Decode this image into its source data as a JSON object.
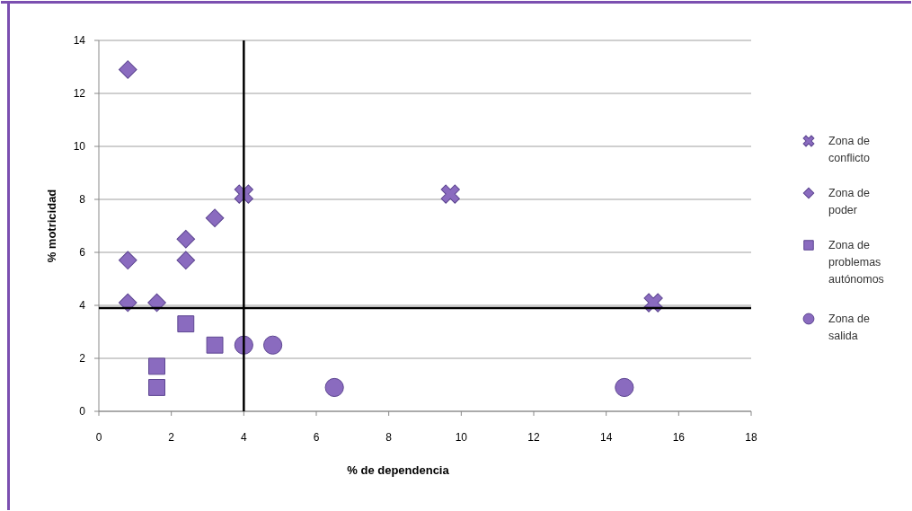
{
  "chart_data": {
    "type": "scatter",
    "xlabel": "% de dependencia",
    "ylabel": "% motricidad",
    "xlim": [
      0,
      18
    ],
    "xticks": [
      0,
      2,
      4,
      6,
      8,
      10,
      12,
      14,
      16,
      18
    ],
    "ylim": [
      0,
      14
    ],
    "yticks": [
      0,
      2,
      4,
      6,
      8,
      10,
      12,
      14
    ],
    "grid": "y",
    "legend": "right",
    "series": [
      {
        "name": "Zona de conflicto",
        "color": "#8a6bbf",
        "marker": "cross",
        "x": [
          4.0,
          9.7,
          15.3
        ],
        "values": [
          8.2,
          8.2,
          4.1
        ]
      },
      {
        "name": "Zona de poder",
        "color": "#8a6bbf",
        "marker": "diamond",
        "x": [
          0.8,
          0.8,
          0.8,
          1.6,
          2.4,
          2.4,
          3.2
        ],
        "values": [
          12.9,
          5.7,
          4.1,
          4.1,
          6.5,
          5.7,
          7.3
        ]
      },
      {
        "name": "Zona de problemas autónomos",
        "color": "#8a6bbf",
        "marker": "square",
        "x": [
          1.6,
          1.6,
          2.4,
          3.2
        ],
        "values": [
          1.7,
          0.9,
          3.3,
          2.5
        ]
      },
      {
        "name": "Zona de salida",
        "color": "#8a6bbf",
        "marker": "circle",
        "x": [
          4.0,
          4.8,
          6.5,
          14.5
        ],
        "values": [
          2.5,
          2.5,
          0.9,
          0.9
        ]
      }
    ],
    "ref_lines": [
      {
        "axis": "x",
        "value": 4,
        "color": "#000000"
      },
      {
        "axis": "y",
        "value": 3.9,
        "color": "#000000"
      }
    ]
  }
}
